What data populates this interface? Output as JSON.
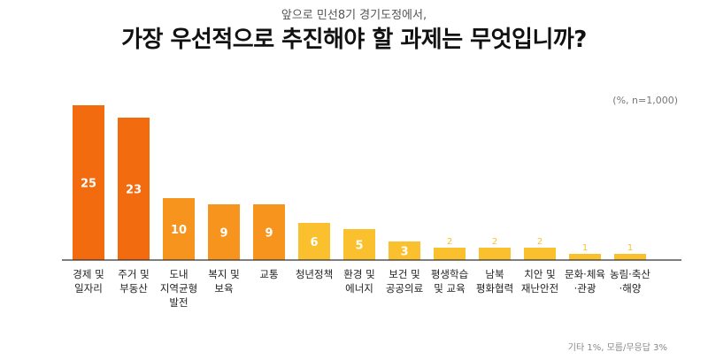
{
  "header": {
    "subtitle": "앞으로 민선8기 경기도정에서,",
    "title": "가장 우선적으로 추진해야 할 과제는 무엇입니까?"
  },
  "unit_label": "(%, n=1,000)",
  "footnote": "기타 1%, 모름/무응답 3%",
  "colors": {
    "orange_dark": "#F26B0F",
    "orange_mid": "#F7941D",
    "yellow": "#FBC02D",
    "axis": "#333333"
  },
  "chart_data": {
    "type": "bar",
    "title": "가장 우선적으로 추진해야 할 과제는 무엇입니까?",
    "categories": [
      [
        "경제 및",
        "일자리"
      ],
      [
        "주거 및",
        "부동산"
      ],
      [
        "도내",
        "지역균형",
        "발전"
      ],
      [
        "복지 및",
        "보육"
      ],
      [
        "교통"
      ],
      [
        "청년정책"
      ],
      [
        "환경 및",
        "에너지"
      ],
      [
        "보건 및",
        "공공의료"
      ],
      [
        "평생학습",
        "및 교육"
      ],
      [
        "남북",
        "평화협력"
      ],
      [
        "치안 및",
        "재난안전"
      ],
      [
        "문화·체육",
        "·관광"
      ],
      [
        "농림·축산",
        "·해양"
      ]
    ],
    "values": [
      25,
      23,
      10,
      9,
      9,
      6,
      5,
      3,
      2,
      2,
      2,
      1,
      1
    ],
    "ylim": [
      0,
      25
    ]
  }
}
